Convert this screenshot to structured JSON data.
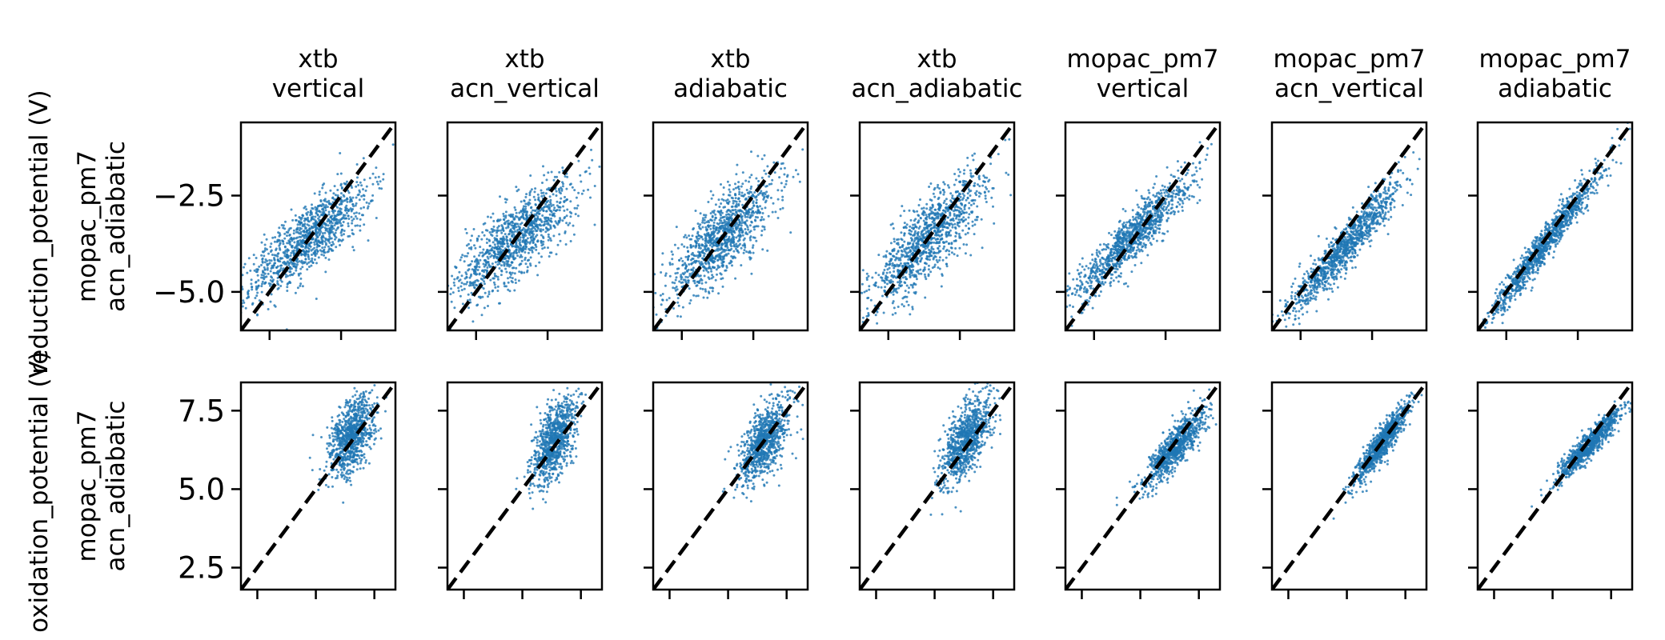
{
  "figure": {
    "row_title_prefixes": [
      "reduction_potential (V)",
      "oxidation_potential (V)"
    ]
  },
  "chart_data": {
    "type": "scatter",
    "point_color": "#1f77b4",
    "diagonal_color": "#000000",
    "diagonal_style": "dashed",
    "grid": false,
    "columns": [
      {
        "line1": "xtb",
        "line2": "vertical"
      },
      {
        "line1": "xtb",
        "line2": "acn_vertical"
      },
      {
        "line1": "xtb",
        "line2": "adiabatic"
      },
      {
        "line1": "xtb",
        "line2": "acn_adiabatic"
      },
      {
        "line1": "mopac_pm7",
        "line2": "vertical"
      },
      {
        "line1": "mopac_pm7",
        "line2": "acn_vertical"
      },
      {
        "line1": "mopac_pm7",
        "line2": "adiabatic"
      }
    ],
    "rows": [
      {
        "ylabel_line1": "mopac_pm7",
        "ylabel_line2": "acn_adiabatic",
        "ylim": [
          -6.0,
          -0.6
        ],
        "yticks": [
          -5.0,
          -2.5
        ],
        "ytick_labels": [
          "−5.0",
          "−2.5"
        ],
        "clusters": [
          {
            "cx": -3.6,
            "cy": -3.6,
            "sa": 1.25,
            "sb": 0.38,
            "angle_deg": 32,
            "n": 1100
          },
          {
            "cx": -3.6,
            "cy": -3.6,
            "sa": 1.2,
            "sb": 0.42,
            "angle_deg": 33,
            "n": 1100
          },
          {
            "cx": -3.6,
            "cy": -3.6,
            "sa": 1.2,
            "sb": 0.4,
            "angle_deg": 38,
            "n": 1100
          },
          {
            "cx": -3.6,
            "cy": -3.6,
            "sa": 1.25,
            "sb": 0.4,
            "angle_deg": 40,
            "n": 1100
          },
          {
            "cx": -3.7,
            "cy": -3.6,
            "sa": 1.25,
            "sb": 0.26,
            "angle_deg": 38,
            "n": 1100
          },
          {
            "cx": -3.4,
            "cy": -3.8,
            "sa": 1.3,
            "sb": 0.22,
            "angle_deg": 42,
            "n": 1100
          },
          {
            "cx": -3.6,
            "cy": -3.7,
            "sa": 1.35,
            "sb": 0.16,
            "angle_deg": 45,
            "n": 1100
          }
        ]
      },
      {
        "ylabel_line1": "mopac_pm7",
        "ylabel_line2": "acn_adiabatic",
        "ylim": [
          1.8,
          8.4
        ],
        "yticks": [
          2.5,
          5.0,
          7.5
        ],
        "ytick_labels": [
          "2.5",
          "5.0",
          "7.5"
        ],
        "clusters": [
          {
            "cx": 6.55,
            "cy": 6.7,
            "sa": 0.7,
            "sb": 0.38,
            "angle_deg": 60,
            "n": 900
          },
          {
            "cx": 6.35,
            "cy": 6.55,
            "sa": 0.75,
            "sb": 0.35,
            "angle_deg": 62,
            "n": 900
          },
          {
            "cx": 6.55,
            "cy": 6.55,
            "sa": 0.75,
            "sb": 0.36,
            "angle_deg": 55,
            "n": 900
          },
          {
            "cx": 6.35,
            "cy": 6.55,
            "sa": 0.8,
            "sb": 0.36,
            "angle_deg": 58,
            "n": 900
          },
          {
            "cx": 6.5,
            "cy": 6.35,
            "sa": 0.85,
            "sb": 0.25,
            "angle_deg": 43,
            "n": 900
          },
          {
            "cx": 6.5,
            "cy": 6.45,
            "sa": 0.85,
            "sb": 0.18,
            "angle_deg": 48,
            "n": 900
          },
          {
            "cx": 6.6,
            "cy": 6.45,
            "sa": 0.9,
            "sb": 0.16,
            "angle_deg": 40,
            "n": 900
          }
        ]
      }
    ]
  }
}
